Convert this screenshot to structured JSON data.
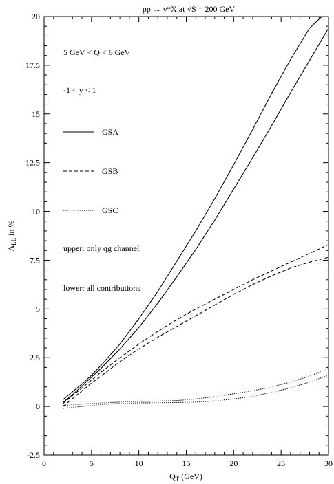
{
  "chart_data": {
    "type": "line",
    "title": "pp → γ*X at √S = 200 GeV",
    "xlabel": "Q_T (GeV)",
    "ylabel": "A_LL in %",
    "xlim": [
      0,
      30
    ],
    "ylim": [
      -2.5,
      20
    ],
    "xticks": [
      0,
      5,
      10,
      15,
      20,
      25,
      30
    ],
    "yticks": [
      -2.5,
      0,
      2.5,
      5,
      7.5,
      10,
      12.5,
      15,
      17.5,
      20
    ],
    "xtick_labels": [
      "0",
      "5",
      "10",
      "15",
      "20",
      "25",
      "30"
    ],
    "ytick_labels": [
      "-2.5",
      "0",
      "2.5",
      "5",
      "7.5",
      "10",
      "12.5",
      "15",
      "17.5",
      "20"
    ],
    "grid": false,
    "legend_position": "top-left",
    "annotations": [
      "5 GeV < Q < 6 GeV",
      "-1 < y < 1",
      "upper: only qg channel",
      "lower: all contributions"
    ],
    "legend": [
      {
        "label": "GSA",
        "style": "solid"
      },
      {
        "label": "GSB",
        "style": "dashed"
      },
      {
        "label": "GSC",
        "style": "dotted"
      }
    ],
    "series": [
      {
        "name": "GSA",
        "variant": "upper",
        "style": "solid",
        "x": [
          2,
          3,
          4,
          5,
          6,
          8,
          10,
          12,
          14,
          16,
          18,
          20,
          22,
          24,
          26,
          28,
          29.3
        ],
        "y": [
          0.35,
          0.75,
          1.15,
          1.6,
          2.1,
          3.2,
          4.5,
          5.9,
          7.45,
          9.0,
          10.65,
          12.4,
          14.2,
          16.05,
          17.8,
          19.4,
          20.0
        ]
      },
      {
        "name": "GSA",
        "variant": "lower",
        "style": "solid",
        "x": [
          2,
          3,
          4,
          5,
          6,
          8,
          10,
          12,
          14,
          16,
          18,
          20,
          22,
          24,
          26,
          28,
          30
        ],
        "y": [
          0.2,
          0.6,
          1.05,
          1.5,
          1.95,
          2.95,
          4.05,
          5.3,
          6.65,
          8.05,
          9.55,
          11.15,
          12.75,
          14.4,
          16.1,
          17.75,
          19.4
        ]
      },
      {
        "name": "GSB",
        "variant": "upper",
        "style": "dashed",
        "x": [
          2,
          3,
          4,
          5,
          6,
          8,
          10,
          12,
          14,
          16,
          18,
          20,
          22,
          24,
          26,
          28,
          30
        ],
        "y": [
          0.15,
          0.55,
          0.95,
          1.35,
          1.75,
          2.5,
          3.2,
          3.85,
          4.45,
          5.0,
          5.5,
          6.0,
          6.5,
          6.95,
          7.4,
          7.85,
          8.3
        ]
      },
      {
        "name": "GSB",
        "variant": "lower",
        "style": "dashed",
        "x": [
          2,
          3,
          4,
          5,
          6,
          8,
          10,
          12,
          14,
          16,
          18,
          20,
          22,
          24,
          26,
          28,
          30
        ],
        "y": [
          0.0,
          0.4,
          0.8,
          1.2,
          1.55,
          2.3,
          2.95,
          3.55,
          4.1,
          4.65,
          5.2,
          5.75,
          6.25,
          6.7,
          7.1,
          7.4,
          7.65
        ]
      },
      {
        "name": "GSC",
        "variant": "upper",
        "style": "dotted",
        "x": [
          2,
          4,
          6,
          8,
          10,
          12,
          14,
          16,
          18,
          20,
          22,
          24,
          26,
          28,
          30
        ],
        "y": [
          0.05,
          0.12,
          0.18,
          0.22,
          0.25,
          0.27,
          0.3,
          0.38,
          0.5,
          0.65,
          0.8,
          1.0,
          1.25,
          1.55,
          1.95
        ]
      },
      {
        "name": "GSC",
        "variant": "lower",
        "style": "dotted",
        "x": [
          2,
          4,
          6,
          8,
          10,
          12,
          14,
          16,
          18,
          20,
          22,
          24,
          26,
          28,
          30
        ],
        "y": [
          -0.1,
          0.0,
          0.1,
          0.15,
          0.18,
          0.19,
          0.2,
          0.22,
          0.28,
          0.38,
          0.52,
          0.72,
          0.95,
          1.25,
          1.6
        ]
      }
    ]
  }
}
